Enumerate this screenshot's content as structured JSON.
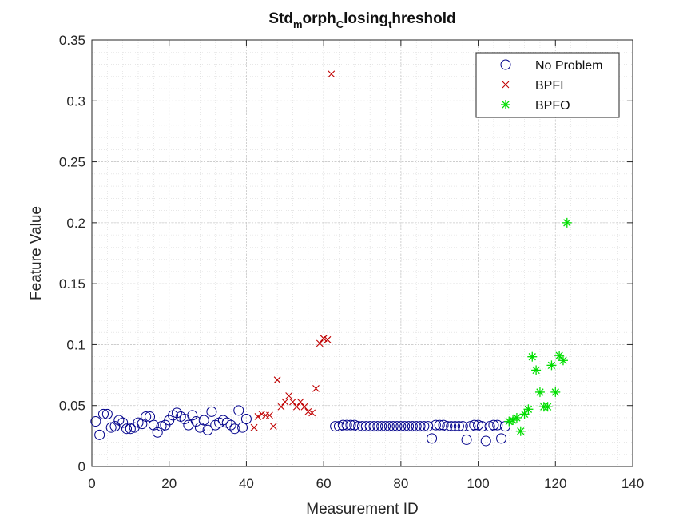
{
  "chart_data": {
    "type": "scatter",
    "title": {
      "parts": [
        {
          "text": "Std",
          "sub": false
        },
        {
          "text": "m",
          "sub": true
        },
        {
          "text": "orph",
          "sub": false
        },
        {
          "text": "C",
          "sub": true
        },
        {
          "text": "losing",
          "sub": false
        },
        {
          "text": "t",
          "sub": true
        },
        {
          "text": "hreshold",
          "sub": false
        }
      ]
    },
    "xlabel": "Measurement ID",
    "ylabel": "Feature Value",
    "xlim": [
      0,
      140
    ],
    "ylim": [
      0,
      0.35
    ],
    "xticks": [
      0,
      20,
      40,
      60,
      80,
      100,
      120,
      140
    ],
    "yticks": [
      0,
      0.05,
      0.1,
      0.15,
      0.2,
      0.25,
      0.3,
      0.35
    ],
    "xtick_labels": [
      "0",
      "20",
      "40",
      "60",
      "80",
      "100",
      "120",
      "140"
    ],
    "ytick_labels": [
      "0",
      "0.05",
      "0.1",
      "0.15",
      "0.2",
      "0.25",
      "0.3",
      "0.35"
    ],
    "grid": true,
    "minor_grid": true,
    "legend_position": "top-right",
    "series": [
      {
        "name": "No Problem",
        "marker": "circle",
        "color": "#00008B",
        "points": [
          [
            1,
            0.037
          ],
          [
            2,
            0.026
          ],
          [
            3,
            0.043
          ],
          [
            4,
            0.043
          ],
          [
            5,
            0.032
          ],
          [
            6,
            0.033
          ],
          [
            7,
            0.038
          ],
          [
            8,
            0.036
          ],
          [
            9,
            0.031
          ],
          [
            10,
            0.031
          ],
          [
            11,
            0.032
          ],
          [
            12,
            0.036
          ],
          [
            13,
            0.035
          ],
          [
            14,
            0.041
          ],
          [
            15,
            0.041
          ],
          [
            16,
            0.034
          ],
          [
            17,
            0.028
          ],
          [
            18,
            0.033
          ],
          [
            19,
            0.034
          ],
          [
            20,
            0.038
          ],
          [
            21,
            0.042
          ],
          [
            22,
            0.044
          ],
          [
            23,
            0.041
          ],
          [
            24,
            0.039
          ],
          [
            25,
            0.034
          ],
          [
            26,
            0.042
          ],
          [
            27,
            0.037
          ],
          [
            28,
            0.032
          ],
          [
            29,
            0.038
          ],
          [
            30,
            0.03
          ],
          [
            31,
            0.045
          ],
          [
            32,
            0.034
          ],
          [
            33,
            0.036
          ],
          [
            34,
            0.038
          ],
          [
            35,
            0.036
          ],
          [
            36,
            0.034
          ],
          [
            37,
            0.031
          ],
          [
            38,
            0.046
          ],
          [
            39,
            0.032
          ],
          [
            40,
            0.039
          ],
          [
            63,
            0.033
          ],
          [
            64,
            0.033
          ],
          [
            65,
            0.034
          ],
          [
            66,
            0.034
          ],
          [
            67,
            0.034
          ],
          [
            68,
            0.034
          ],
          [
            69,
            0.033
          ],
          [
            70,
            0.033
          ],
          [
            71,
            0.033
          ],
          [
            72,
            0.033
          ],
          [
            73,
            0.033
          ],
          [
            74,
            0.033
          ],
          [
            75,
            0.033
          ],
          [
            76,
            0.033
          ],
          [
            77,
            0.033
          ],
          [
            78,
            0.033
          ],
          [
            79,
            0.033
          ],
          [
            80,
            0.033
          ],
          [
            81,
            0.033
          ],
          [
            82,
            0.033
          ],
          [
            83,
            0.033
          ],
          [
            84,
            0.033
          ],
          [
            85,
            0.033
          ],
          [
            86,
            0.033
          ],
          [
            87,
            0.033
          ],
          [
            88,
            0.023
          ],
          [
            89,
            0.034
          ],
          [
            90,
            0.034
          ],
          [
            91,
            0.034
          ],
          [
            92,
            0.033
          ],
          [
            93,
            0.033
          ],
          [
            94,
            0.033
          ],
          [
            95,
            0.033
          ],
          [
            96,
            0.033
          ],
          [
            97,
            0.022
          ],
          [
            98,
            0.033
          ],
          [
            99,
            0.034
          ],
          [
            100,
            0.034
          ],
          [
            101,
            0.033
          ],
          [
            102,
            0.021
          ],
          [
            103,
            0.033
          ],
          [
            104,
            0.034
          ],
          [
            105,
            0.034
          ],
          [
            106,
            0.023
          ],
          [
            107,
            0.033
          ]
        ]
      },
      {
        "name": "BPFI",
        "marker": "x",
        "color": "#C00000",
        "points": [
          [
            42,
            0.032
          ],
          [
            43,
            0.041
          ],
          [
            44,
            0.043
          ],
          [
            45,
            0.042
          ],
          [
            46,
            0.042
          ],
          [
            47,
            0.033
          ],
          [
            48,
            0.071
          ],
          [
            49,
            0.049
          ],
          [
            50,
            0.053
          ],
          [
            51,
            0.058
          ],
          [
            52,
            0.053
          ],
          [
            53,
            0.049
          ],
          [
            54,
            0.053
          ],
          [
            55,
            0.049
          ],
          [
            56,
            0.045
          ],
          [
            57,
            0.044
          ],
          [
            58,
            0.064
          ],
          [
            59,
            0.101
          ],
          [
            60,
            0.105
          ],
          [
            61,
            0.104
          ],
          [
            62,
            0.322
          ]
        ]
      },
      {
        "name": "BPFO",
        "marker": "asterisk",
        "color": "#00DD00",
        "points": [
          [
            108,
            0.037
          ],
          [
            109,
            0.038
          ],
          [
            110,
            0.04
          ],
          [
            111,
            0.029
          ],
          [
            112,
            0.043
          ],
          [
            113,
            0.047
          ],
          [
            114,
            0.09
          ],
          [
            115,
            0.079
          ],
          [
            116,
            0.061
          ],
          [
            117,
            0.049
          ],
          [
            118,
            0.049
          ],
          [
            119,
            0.083
          ],
          [
            120,
            0.061
          ],
          [
            121,
            0.091
          ],
          [
            122,
            0.087
          ],
          [
            123,
            0.2
          ]
        ]
      }
    ]
  }
}
